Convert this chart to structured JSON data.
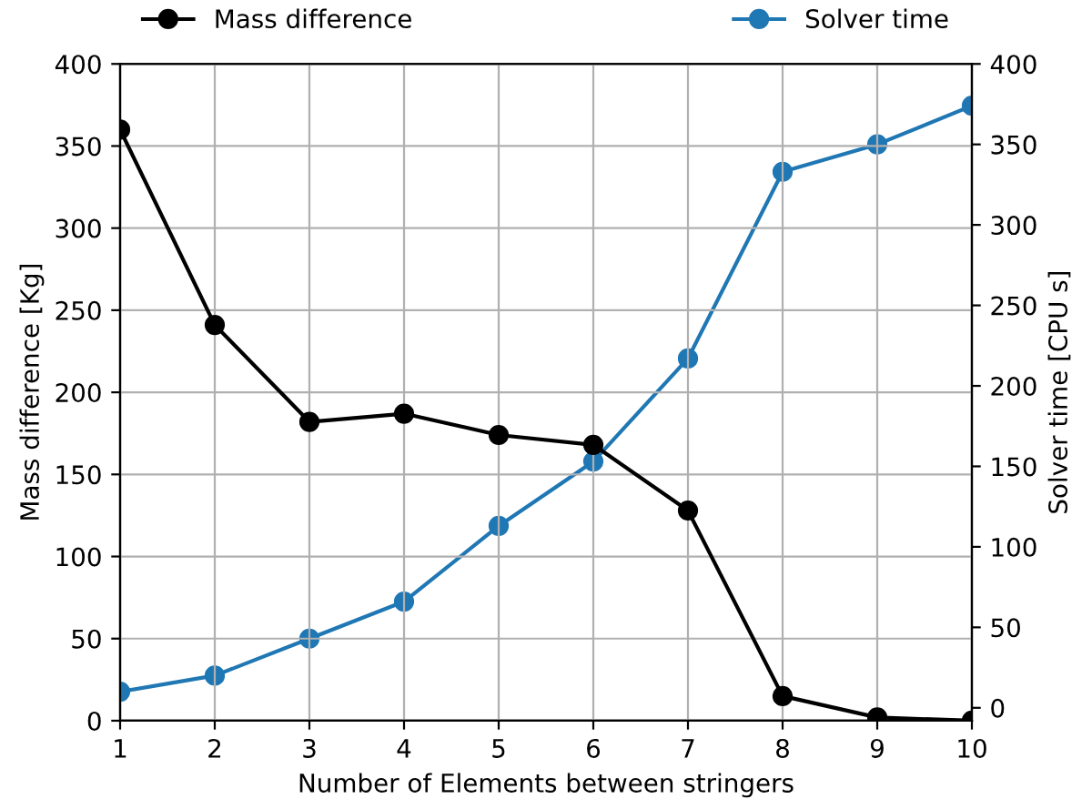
{
  "chart_data": {
    "type": "line",
    "x": [
      1,
      2,
      3,
      4,
      5,
      6,
      7,
      8,
      9,
      10
    ],
    "xlabel": "Number of Elements between stringers",
    "ylabel": "Mass difference [Kg]",
    "y2label": "Solver time [CPU s]",
    "series": [
      {
        "name": "Mass difference",
        "color": "#000000",
        "values": [
          360,
          241,
          182,
          187,
          174,
          168,
          128,
          15,
          2,
          0
        ]
      },
      {
        "name": "Solver time",
        "color": "#1f77b4",
        "axis": "y2",
        "values": [
          10,
          20,
          43,
          66,
          113,
          153,
          217,
          333,
          350,
          374
        ]
      }
    ],
    "xlim": [
      1,
      10
    ],
    "xticks": [
      1,
      2,
      3,
      4,
      5,
      6,
      7,
      8,
      9,
      10
    ],
    "ylim": [
      0,
      400
    ],
    "yticks": [
      0,
      50,
      100,
      150,
      200,
      250,
      300,
      350,
      400
    ],
    "y2lim": [
      -8,
      400
    ],
    "y2ticks": [
      0,
      50,
      100,
      150,
      200,
      250,
      300,
      350,
      400
    ],
    "grid": true,
    "legend": "top",
    "marker": "circle",
    "line_style": "solid"
  }
}
